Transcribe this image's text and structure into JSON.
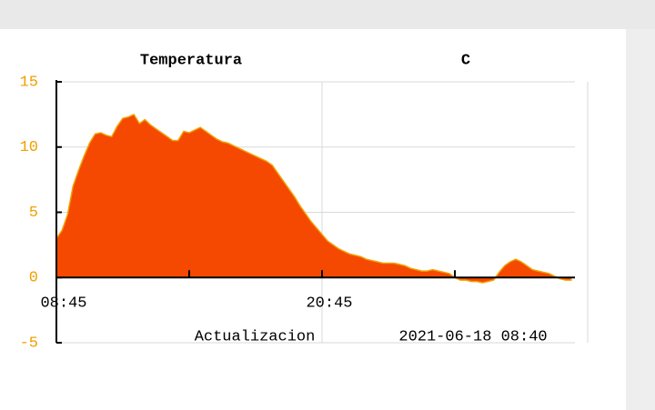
{
  "chart_data": {
    "type": "area",
    "title": "Temperatura",
    "unit": "C",
    "categories": [
      "08:45",
      null,
      null,
      null,
      null,
      null,
      null,
      null,
      null,
      null,
      null,
      null,
      null,
      null,
      null,
      null,
      null,
      null,
      null,
      null,
      null,
      null,
      null,
      null,
      null,
      null,
      null,
      null,
      null,
      null,
      null,
      null,
      null,
      null,
      null,
      null,
      null,
      null,
      null,
      null,
      null,
      null,
      null,
      null,
      null,
      null,
      null,
      null,
      "20:45",
      null,
      null,
      null,
      null,
      null,
      null,
      null,
      null,
      null,
      null,
      null,
      null,
      null,
      null,
      null,
      null,
      null,
      null,
      null,
      null,
      null,
      null,
      null,
      null,
      null,
      null,
      null,
      null,
      null,
      null,
      null,
      null,
      null,
      null,
      null,
      null,
      null,
      null,
      null,
      null,
      null,
      null,
      null,
      null,
      null
    ],
    "values": [
      3.0,
      3.6,
      4.8,
      7.0,
      8.2,
      9.3,
      10.3,
      11.0,
      11.1,
      10.9,
      10.8,
      11.6,
      12.2,
      12.3,
      12.5,
      11.8,
      12.1,
      11.7,
      11.4,
      11.1,
      10.8,
      10.5,
      10.5,
      11.2,
      11.1,
      11.3,
      11.5,
      11.2,
      10.9,
      10.6,
      10.4,
      10.3,
      10.1,
      9.9,
      9.7,
      9.5,
      9.3,
      9.1,
      8.9,
      8.6,
      8.0,
      7.4,
      6.8,
      6.2,
      5.5,
      4.9,
      4.3,
      3.8,
      3.3,
      2.8,
      2.5,
      2.2,
      2.0,
      1.8,
      1.7,
      1.6,
      1.4,
      1.3,
      1.2,
      1.1,
      1.1,
      1.1,
      1.0,
      0.9,
      0.7,
      0.6,
      0.5,
      0.5,
      0.6,
      0.5,
      0.4,
      0.3,
      0.0,
      -0.2,
      -0.2,
      -0.3,
      -0.3,
      -0.4,
      -0.3,
      -0.2,
      0.4,
      0.9,
      1.2,
      1.4,
      1.2,
      0.9,
      0.6,
      0.5,
      0.4,
      0.3,
      0.1,
      -0.1,
      -0.2,
      -0.2
    ],
    "color": "#f54800",
    "edge_color": "#f0a000",
    "tick_color": "#f0a000",
    "ylim": [
      -5,
      15
    ],
    "yticks": [
      -5,
      0,
      5,
      10,
      15
    ],
    "grid": true,
    "update_label": "Actualizacion",
    "update_time": "2021-06-18 08:40"
  }
}
